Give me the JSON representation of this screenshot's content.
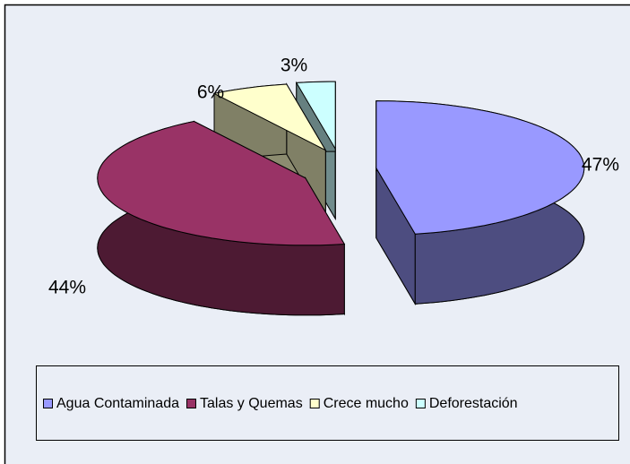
{
  "chart_data": {
    "type": "pie",
    "categories": [
      "Agua Contaminada",
      "Talas y Quemas",
      "Crece mucho",
      "Deforestación"
    ],
    "values": [
      47,
      44,
      6,
      3
    ],
    "value_labels": [
      "47%",
      "44%",
      "6%",
      "3%"
    ],
    "colors": [
      "#9999ff",
      "#993366",
      "#ffffcc",
      "#ccffff"
    ],
    "legend": "bottom"
  }
}
